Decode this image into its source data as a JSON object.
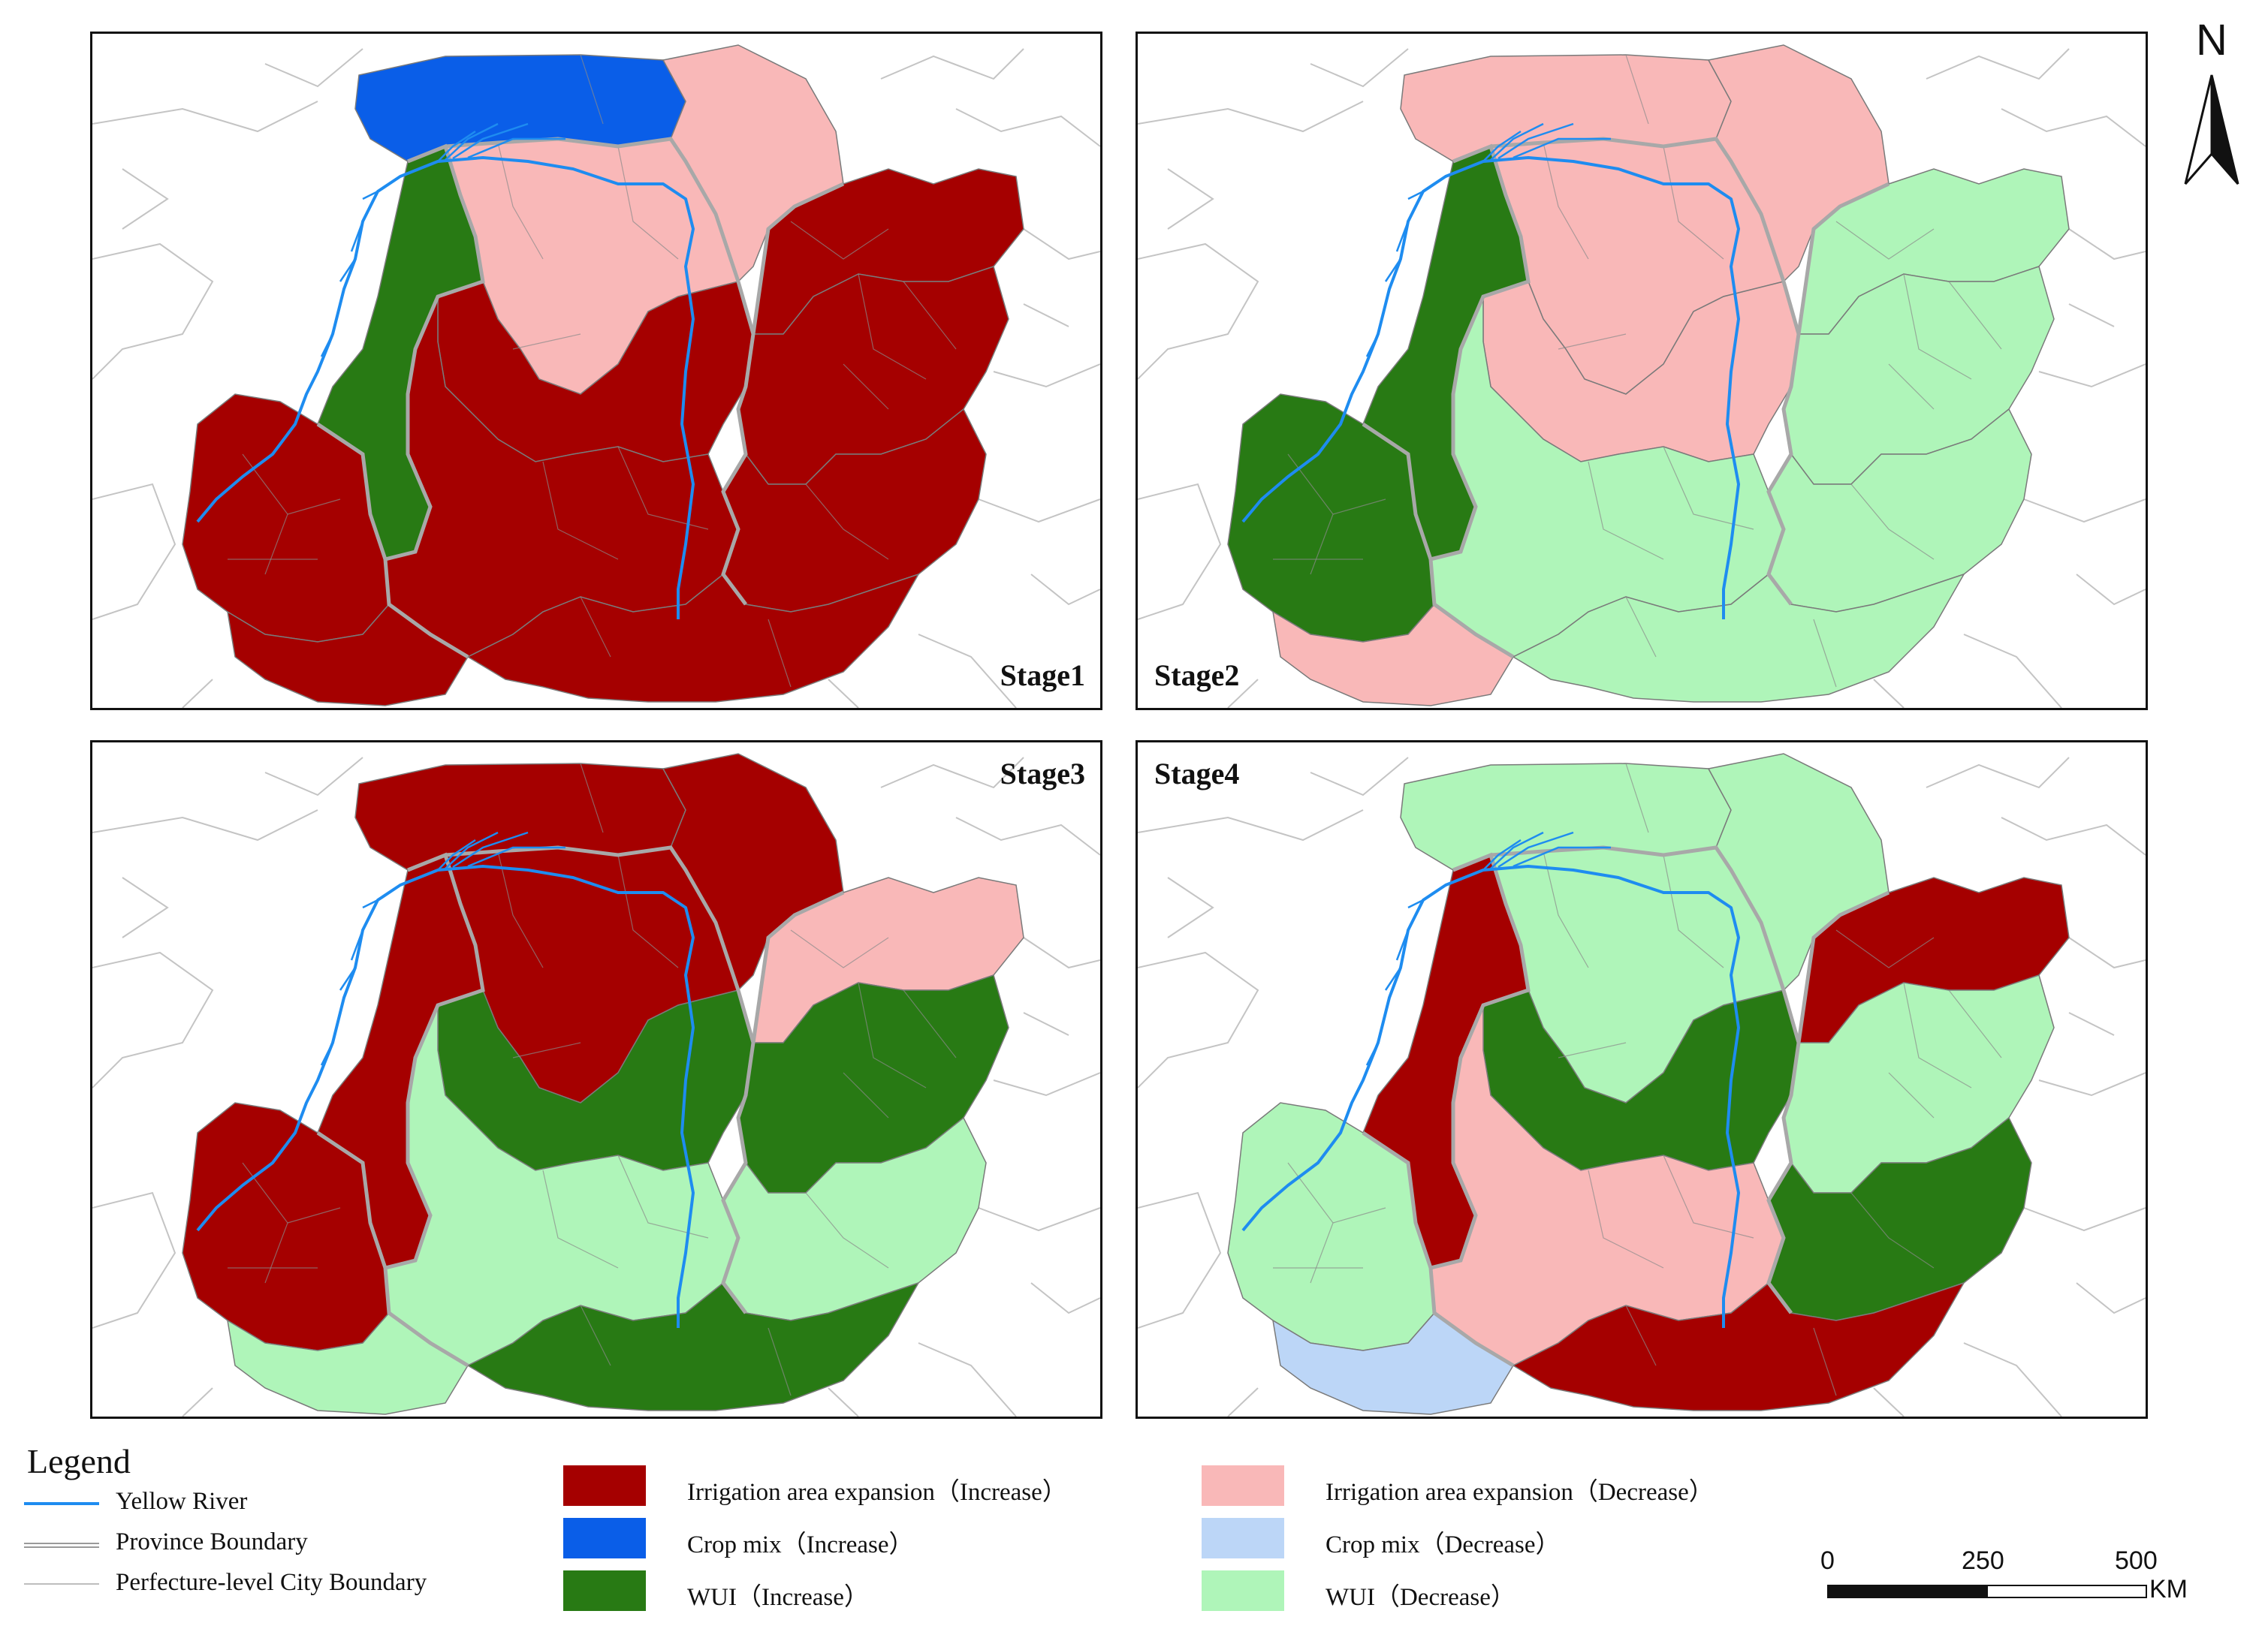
{
  "colors": {
    "irrigation_increase": "#a50000",
    "irrigation_decrease": "#f9b8b8",
    "crop_mix_increase": "#0a5ee8",
    "crop_mix_decrease": "#bcd6f7",
    "wui_increase": "#287a14",
    "wui_decrease": "#aff5b9",
    "yellow_river": "#1e8cf0",
    "province_boundary": "#a8a8a8",
    "city_boundary": "#c8c8c8"
  },
  "panels": [
    {
      "label": "Stage1",
      "label_corner": "bottom-right",
      "regions": {
        "north_plain": "crop_mix_increase",
        "northeast": "irrigation_decrease",
        "ordos": "irrigation_decrease",
        "ningxia": "wui_increase",
        "gansu_east": "irrigation_increase",
        "gansu_south": "irrigation_increase",
        "shaanxi_north": "irrigation_increase",
        "shaanxi_central": "irrigation_increase",
        "shanxi_north": "irrigation_increase",
        "shanxi_central": "irrigation_increase",
        "shanxi_south": "irrigation_increase",
        "henan": "irrigation_increase"
      }
    },
    {
      "label": "Stage2",
      "label_corner": "bottom-left",
      "regions": {
        "north_plain": "irrigation_decrease",
        "northeast": "irrigation_decrease",
        "ordos": "irrigation_decrease",
        "ningxia": "wui_increase",
        "gansu_east": "wui_increase",
        "gansu_south": "irrigation_decrease",
        "shaanxi_north": "irrigation_decrease",
        "shaanxi_central": "wui_decrease",
        "shanxi_north": "wui_decrease",
        "shanxi_central": "wui_decrease",
        "shanxi_south": "wui_decrease",
        "henan": "wui_decrease"
      }
    },
    {
      "label": "Stage3",
      "label_corner": "top-right",
      "regions": {
        "north_plain": "irrigation_increase",
        "northeast": "irrigation_increase",
        "ordos": "irrigation_increase",
        "ningxia": "irrigation_increase",
        "gansu_east": "irrigation_increase",
        "gansu_south": "wui_decrease",
        "shaanxi_north": "wui_increase",
        "shaanxi_central": "wui_decrease",
        "shanxi_north": "irrigation_decrease",
        "shanxi_central": "wui_increase",
        "shanxi_south": "wui_decrease",
        "henan": "wui_increase"
      }
    },
    {
      "label": "Stage4",
      "label_corner": "top-left",
      "regions": {
        "north_plain": "wui_decrease",
        "northeast": "wui_decrease",
        "ordos": "wui_decrease",
        "ningxia": "irrigation_increase",
        "gansu_east": "wui_decrease",
        "gansu_south": "crop_mix_decrease",
        "shaanxi_north": "wui_increase",
        "shaanxi_central": "irrigation_decrease",
        "shanxi_north": "irrigation_increase",
        "shanxi_central": "wui_decrease",
        "shanxi_south": "wui_increase",
        "henan": "irrigation_increase"
      }
    }
  ],
  "north_arrow": {
    "letter": "N"
  },
  "legend": {
    "title": "Legend",
    "line_items": [
      {
        "label": "Yellow River",
        "style": "yellow_river"
      },
      {
        "label": "Province Boundary",
        "style": "province_boundary"
      },
      {
        "label": "Perfecture-level City Boundary",
        "style": "city_boundary"
      }
    ],
    "swatches": [
      {
        "label": "Irrigation area expansion（Increase）",
        "color_key": "irrigation_increase"
      },
      {
        "label": "Crop mix（Increase）",
        "color_key": "crop_mix_increase"
      },
      {
        "label": "WUI（Increase）",
        "color_key": "wui_increase"
      },
      {
        "label": "Irrigation area expansion（Decrease）",
        "color_key": "irrigation_decrease"
      },
      {
        "label": "Crop mix（Decrease）",
        "color_key": "crop_mix_decrease"
      },
      {
        "label": "WUI（Decrease）",
        "color_key": "wui_decrease"
      }
    ]
  },
  "scale_bar": {
    "ticks": [
      "0",
      "250",
      "500"
    ],
    "unit": "KM"
  }
}
